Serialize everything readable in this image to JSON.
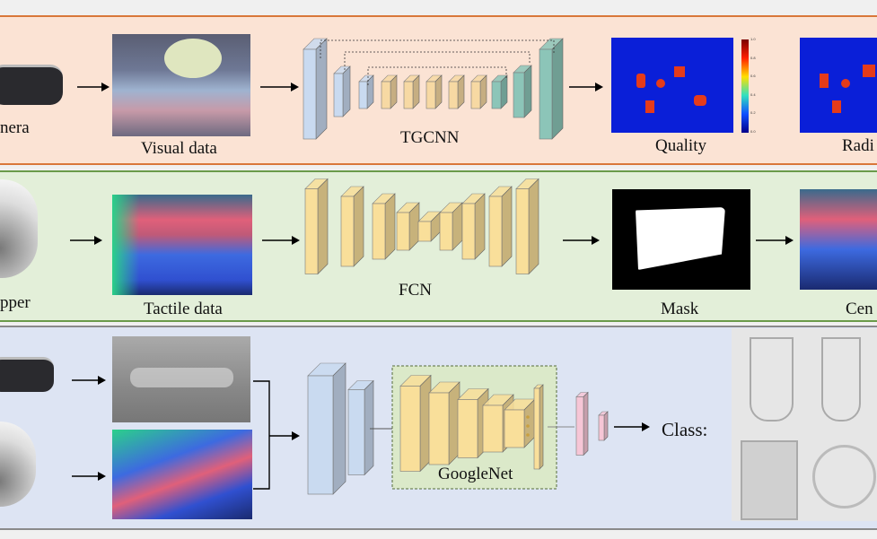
{
  "colors": {
    "panel_visual_bg": "#fbe3d4",
    "panel_visual_border": "#d9773a",
    "panel_tactile_bg": "#e3efd9",
    "panel_tactile_border": "#6a9a4a",
    "panel_class_bg": "#dde4f3",
    "panel_class_border": "#8a8a8a",
    "encoder_blue": "#c9daf0",
    "block_orange": "#f7d9a3",
    "decoder_teal": "#8cc5b8",
    "block_yellow": "#f9df9a",
    "fc_pink": "#f6c6d6",
    "googlenet_box": "#dbe9c9"
  },
  "row_visual": {
    "sensor_label": "nera",
    "input_label": "Visual data",
    "network_label": "TGCNN",
    "output1_label": "Quality",
    "output2_label": "Radi",
    "colorbar_ticks": [
      "1.0",
      "0.8",
      "0.6",
      "0.4",
      "0.2",
      "0.0"
    ]
  },
  "row_tactile": {
    "sensor_label": "pper",
    "input_label": "Tactile data",
    "network_label": "FCN",
    "output1_label": "Mask",
    "output2_label": "Cen"
  },
  "row_class": {
    "network_label": "GoogleNet",
    "output_label": "Class:"
  },
  "icons": [
    "camera-icon",
    "gripper-icon",
    "arrow-right-icon"
  ]
}
